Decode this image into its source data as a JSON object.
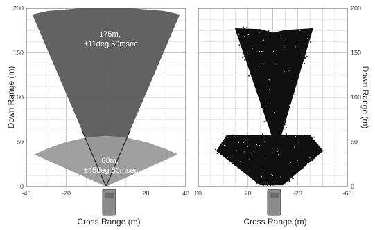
{
  "chart_data": [
    {
      "type": "area",
      "panel": "left",
      "xlabel": "Cross Range (m)",
      "ylabel": "Down Range (m)",
      "xlim": [
        -40,
        40
      ],
      "ylim": [
        0,
        200
      ],
      "x_ticks": [
        -40,
        -20,
        0,
        20,
        40
      ],
      "y_ticks": [
        0,
        50,
        100,
        150,
        200
      ],
      "grid": true,
      "series": [
        {
          "range_m": 175,
          "half_angle_deg": 11,
          "label_lines": [
            "175m,",
            "±11deg,50msec"
          ],
          "color": "#5a5a5a",
          "polygon": [
            [
              0,
              0
            ],
            [
              -37,
              193
            ],
            [
              -29,
              197
            ],
            [
              -15,
              199.5
            ],
            [
              0,
              200
            ],
            [
              15,
              199.5
            ],
            [
              29,
              197
            ],
            [
              37,
              193
            ]
          ]
        },
        {
          "range_m": 60,
          "half_angle_deg": 45,
          "label_lines": [
            "60m,",
            "±45deg,50msec"
          ],
          "color": "#9a9a9a",
          "polygon": [
            [
              0,
              0
            ],
            [
              -36,
              36
            ],
            [
              -30,
              42
            ],
            [
              -20,
              50
            ],
            [
              -10,
              55
            ],
            [
              0,
              57
            ],
            [
              10,
              55
            ],
            [
              20,
              50
            ],
            [
              30,
              42
            ],
            [
              36,
              36
            ]
          ]
        }
      ]
    },
    {
      "type": "scatter",
      "panel": "right",
      "xlabel": "Cross Range (m)",
      "ylabel": "Down Range (m)",
      "xlim": [
        60,
        -60
      ],
      "ylim": [
        0,
        200
      ],
      "x_ticks": [
        60,
        20,
        -20,
        -60
      ],
      "y_ticks": [
        0,
        50,
        100,
        150,
        200
      ],
      "y_axis_side": "right",
      "grid": true,
      "color": "#101010",
      "regions": [
        {
          "name": "wide-near",
          "polygon": [
            [
              10,
              2
            ],
            [
              45,
              40
            ],
            [
              37,
              57
            ],
            [
              -30,
              57
            ],
            [
              -40,
              40
            ],
            [
              -8,
              2
            ]
          ]
        },
        {
          "name": "narrow-far",
          "polygon": [
            [
              0,
              55
            ],
            [
              30,
              177
            ],
            [
              10,
              176
            ],
            [
              0,
              172
            ],
            [
              -10,
              175
            ],
            [
              -32,
              177
            ],
            [
              -6,
              55
            ]
          ]
        }
      ]
    }
  ]
}
